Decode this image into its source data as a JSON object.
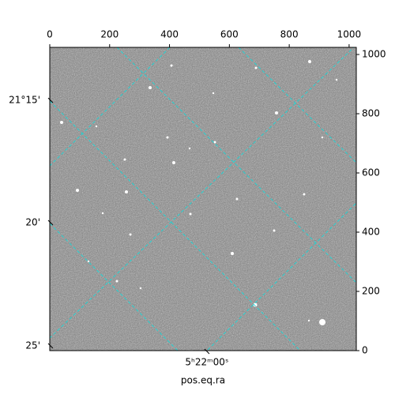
{
  "chart_data": {
    "type": "image",
    "xlabel": "pos.eq.ra",
    "xlim": [
      0,
      1024
    ],
    "xticks": [
      0,
      200,
      400,
      600,
      800,
      1000
    ],
    "ylim": [
      0,
      1024
    ],
    "yticks": [
      0,
      200,
      400,
      600,
      800,
      1000
    ],
    "world_yticks": [
      {
        "value": 845,
        "label": "21°15'"
      },
      {
        "value": 432,
        "label": "20'"
      },
      {
        "value": 16,
        "label": "25'"
      }
    ],
    "world_xticks": [
      {
        "value": 525,
        "label": "5ʰ22ᵐ00ˢ"
      }
    ],
    "grid": true,
    "grid_color": "#22d3d3"
  }
}
